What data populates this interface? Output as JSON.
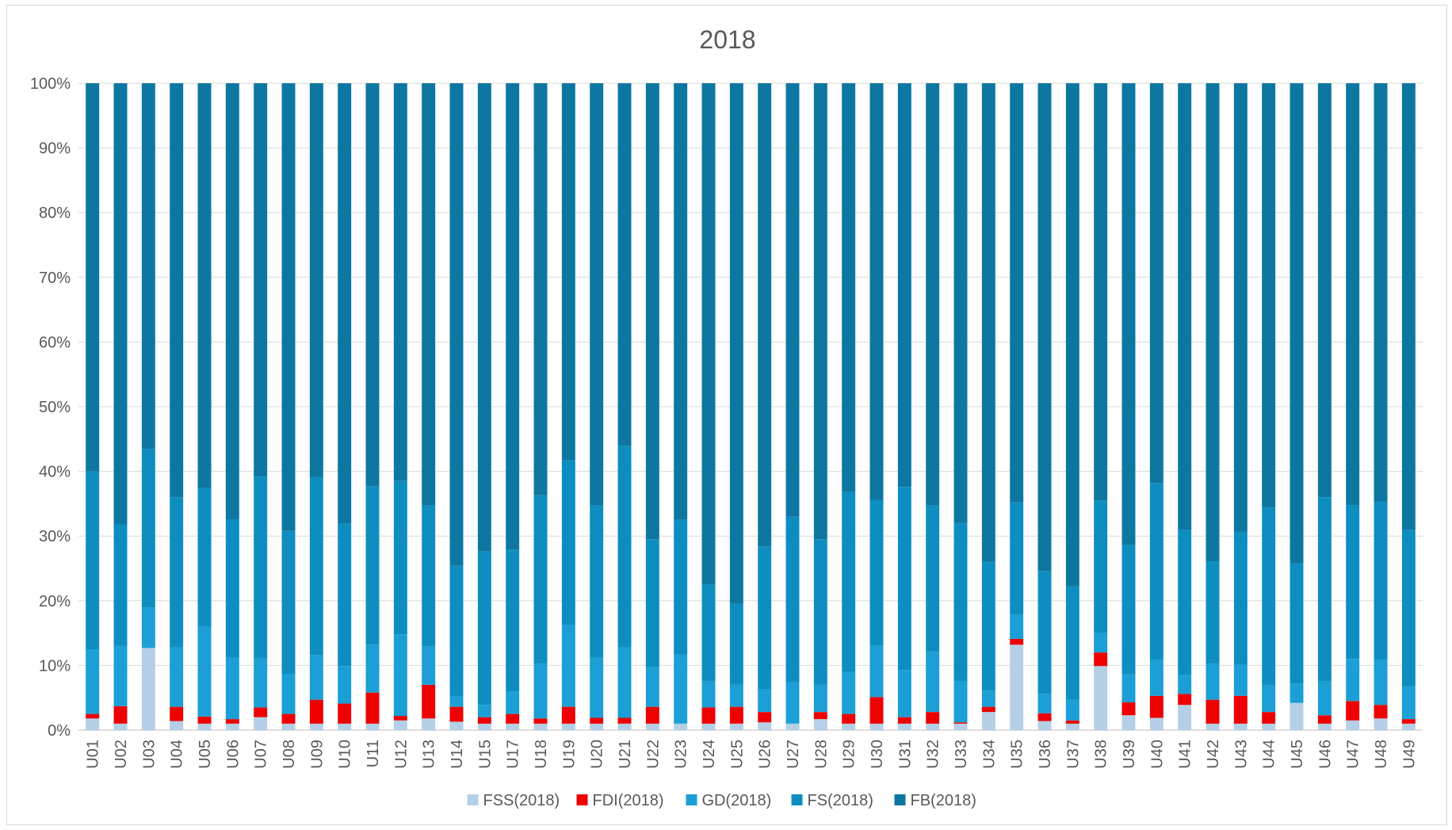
{
  "chart_data": {
    "type": "bar",
    "stacked": true,
    "percent": true,
    "title": "2018",
    "ylim": [
      0,
      100
    ],
    "yticks": [
      "0%",
      "10%",
      "20%",
      "30%",
      "40%",
      "50%",
      "60%",
      "70%",
      "80%",
      "90%",
      "100%"
    ],
    "grid": true,
    "legend_position": "bottom",
    "categories": [
      "U01",
      "U02",
      "U03",
      "U04",
      "U05",
      "U06",
      "U07",
      "U08",
      "U09",
      "U10",
      "U11",
      "U12",
      "U13",
      "U14",
      "U15",
      "U17",
      "U18",
      "U19",
      "U20",
      "U21",
      "U22",
      "U23",
      "U24",
      "U25",
      "U26",
      "U27",
      "U28",
      "U29",
      "U30",
      "U31",
      "U32",
      "U33",
      "U34",
      "U35",
      "U36",
      "U37",
      "U38",
      "U39",
      "U40",
      "U41",
      "U42",
      "U43",
      "U44",
      "U45",
      "U46",
      "U47",
      "U48",
      "U49"
    ],
    "series": [
      {
        "name": "FSS(2018)",
        "color": "#b4cfe6",
        "values": [
          1.8,
          1.0,
          12.7,
          1.4,
          1.0,
          1.0,
          2.0,
          1.0,
          1.0,
          1.0,
          1.0,
          1.5,
          1.8,
          1.3,
          1.0,
          1.0,
          1.0,
          1.0,
          1.0,
          1.0,
          1.0,
          1.0,
          1.0,
          1.0,
          1.2,
          1.0,
          1.7,
          1.0,
          1.0,
          1.0,
          1.0,
          1.0,
          2.8,
          13.2,
          1.4,
          1.0,
          9.9,
          2.3,
          1.9,
          3.9,
          1.0,
          1.0,
          1.0,
          4.2,
          1.0,
          1.5,
          1.8,
          1.0
        ]
      },
      {
        "name": "FDI(2018)",
        "color": "#ee0000",
        "values": [
          0.7,
          2.7,
          0,
          2.2,
          1.1,
          0.7,
          1.5,
          1.5,
          3.7,
          3.1,
          4.8,
          0.7,
          5.2,
          2.3,
          1.0,
          1.5,
          0.8,
          2.6,
          0.9,
          0.9,
          2.6,
          0,
          2.5,
          2.6,
          1.6,
          0,
          1.1,
          1.5,
          4.1,
          1.0,
          1.8,
          0.2,
          0.8,
          0.9,
          1.2,
          0.5,
          2.1,
          2.0,
          3.4,
          1.7,
          3.7,
          4.3,
          1.8,
          0,
          1.3,
          3.0,
          2.1,
          0.7
        ]
      },
      {
        "name": "GD(2018)",
        "color": "#1b9fd6",
        "values": [
          10.0,
          9.3,
          6.2,
          9.2,
          13.9,
          9.5,
          7.6,
          6.2,
          6.9,
          5.8,
          7.4,
          12.6,
          5.9,
          1.6,
          1.9,
          3.5,
          8.5,
          12.7,
          9.3,
          10.9,
          6.2,
          10.7,
          4.0,
          3.4,
          3.5,
          6.4,
          4.2,
          6.5,
          8.0,
          7.3,
          9.3,
          6.4,
          2.5,
          3.8,
          3.0,
          3.2,
          3.0,
          4.3,
          5.6,
          2.9,
          5.6,
          4.8,
          4.1,
          3.0,
          5.2,
          6.5,
          7.0,
          5.1
        ]
      },
      {
        "name": "FS(2018)",
        "color": "#0e8ec0",
        "values": [
          27.5,
          18.8,
          24.6,
          23.2,
          21.5,
          21.4,
          28.1,
          22.1,
          27.5,
          22.0,
          24.5,
          23.7,
          21.8,
          20.2,
          23.7,
          21.9,
          26.0,
          25.4,
          23.5,
          31.1,
          19.7,
          20.8,
          15.0,
          12.5,
          22.1,
          25.6,
          22.5,
          27.8,
          22.5,
          28.3,
          22.6,
          24.4,
          19.9,
          17.3,
          19.0,
          17.5,
          20.5,
          20.0,
          27.3,
          22.5,
          15.8,
          20.6,
          27.5,
          18.6,
          28.5,
          23.8,
          24.4,
          24.2
        ]
      },
      {
        "name": "FB(2018)",
        "color": "#0d77a1",
        "values": [
          60.0,
          68.2,
          56.5,
          64.0,
          62.5,
          67.4,
          60.8,
          69.2,
          60.9,
          68.1,
          62.3,
          61.5,
          65.3,
          74.6,
          72.4,
          72.1,
          63.7,
          58.3,
          65.3,
          56.1,
          70.5,
          67.5,
          77.5,
          80.5,
          71.6,
          67.0,
          70.5,
          63.2,
          64.4,
          62.4,
          65.3,
          68.0,
          74.0,
          64.8,
          75.4,
          77.8,
          64.5,
          71.4,
          61.8,
          69.0,
          73.9,
          69.3,
          65.6,
          74.2,
          64.0,
          65.2,
          64.7,
          69.0
        ]
      }
    ]
  }
}
